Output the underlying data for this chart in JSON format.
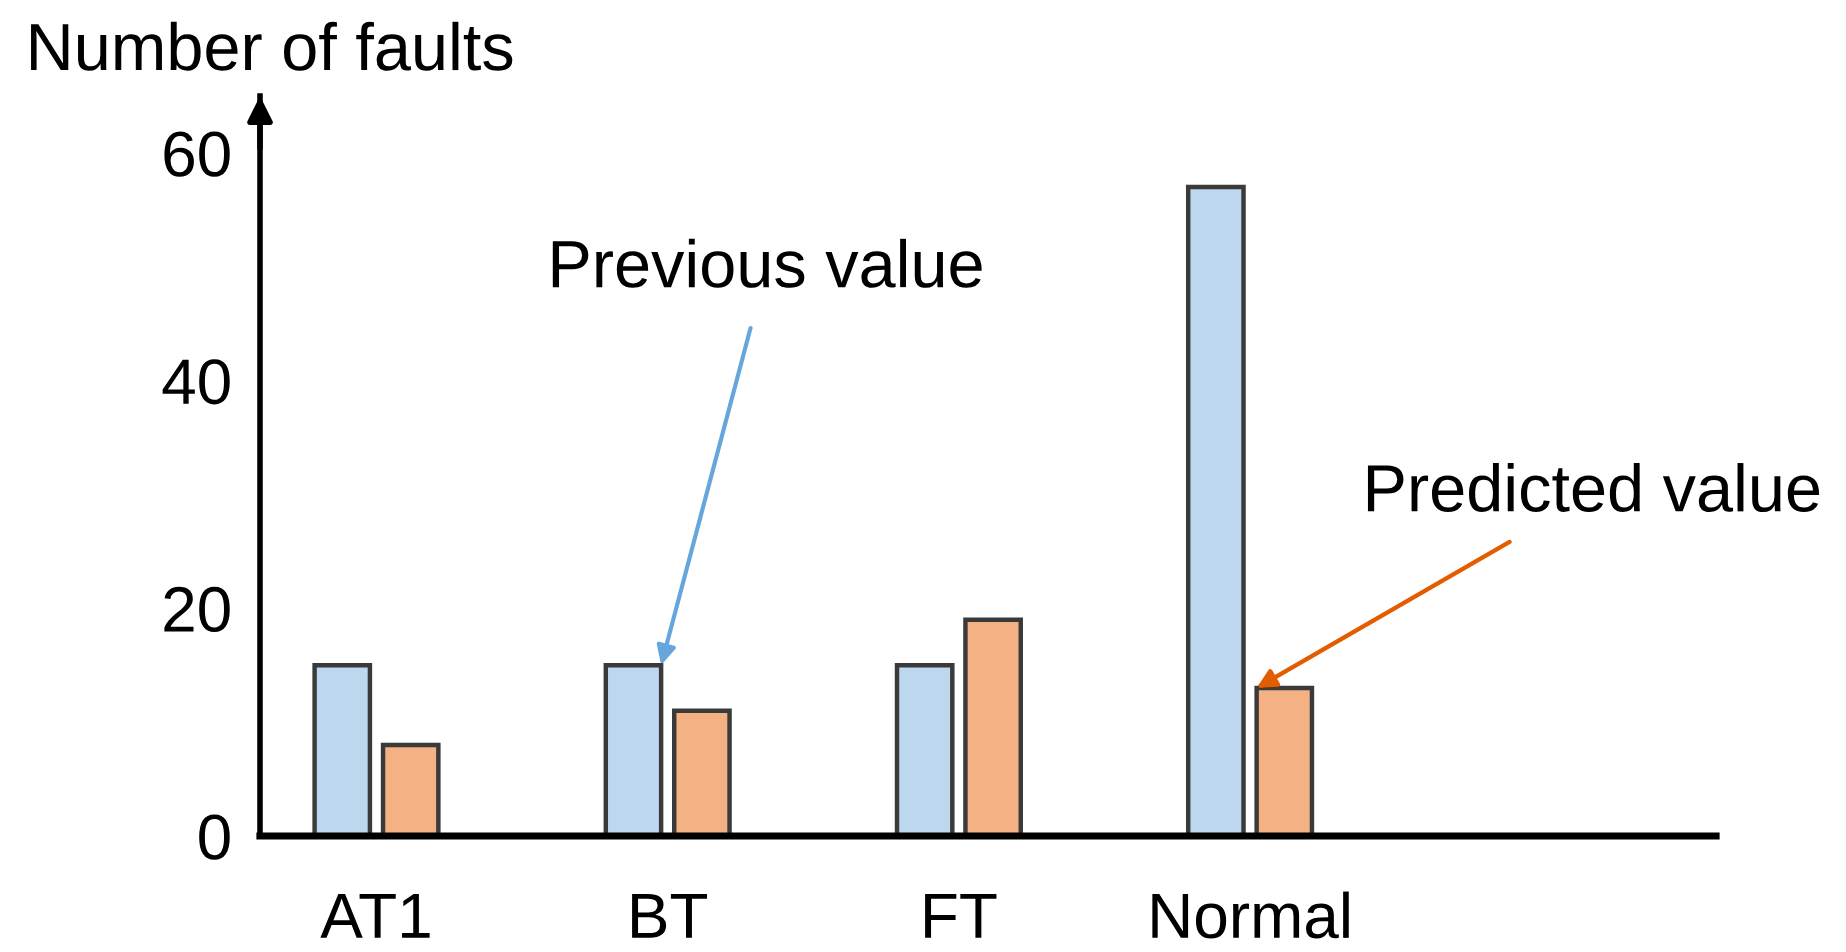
{
  "chart_data": {
    "type": "bar",
    "ylabel": "Number of faults",
    "categories": [
      "AT1",
      "BT",
      "FT",
      "Normal"
    ],
    "series": [
      {
        "color": "#bdd7ee",
        "values": [
          15,
          15,
          15,
          57
        ]
      },
      {
        "color": "#f4b183",
        "values": [
          8,
          11,
          19,
          13
        ]
      }
    ],
    "ylim": [
      0,
      65
    ],
    "yticks": [
      0,
      20,
      40,
      60
    ],
    "annotations": [
      {
        "text": "Previous value",
        "x": "BT",
        "y": 15
      },
      {
        "text": "Predicted value",
        "x": "Normal",
        "y": 13
      }
    ]
  }
}
